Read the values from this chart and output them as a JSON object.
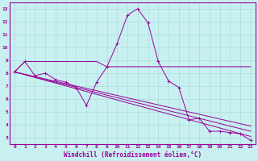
{
  "xlabel": "Windchill (Refroidissement éolien,°C)",
  "bg_color": "#c8f0f0",
  "line_color": "#990099",
  "grid_color": "#aadddd",
  "xlim": [
    -0.5,
    23.5
  ],
  "ylim": [
    2.5,
    13.5
  ],
  "xticks": [
    0,
    1,
    2,
    3,
    4,
    5,
    6,
    7,
    8,
    9,
    10,
    11,
    12,
    13,
    14,
    15,
    16,
    17,
    18,
    19,
    20,
    21,
    22,
    23
  ],
  "yticks": [
    3,
    4,
    5,
    6,
    7,
    8,
    9,
    10,
    11,
    12,
    13
  ],
  "series": [
    {
      "x": [
        0,
        1,
        2,
        3,
        4,
        5,
        6,
        7,
        8,
        9,
        10,
        11,
        12,
        13,
        14,
        15,
        16,
        17,
        18,
        19,
        20,
        21,
        22,
        23
      ],
      "y": [
        8.1,
        8.9,
        7.8,
        8.0,
        7.5,
        7.3,
        6.9,
        5.5,
        7.3,
        8.5,
        10.3,
        12.5,
        13.0,
        11.9,
        8.9,
        7.4,
        6.9,
        4.4,
        4.5,
        3.5,
        3.5,
        3.4,
        3.3,
        2.8
      ],
      "style": "marked_line"
    },
    {
      "x": [
        0,
        1,
        8,
        9,
        10,
        11,
        12,
        13,
        14,
        15,
        16,
        17,
        18,
        19,
        20,
        21,
        22,
        23
      ],
      "y": [
        8.1,
        8.9,
        8.9,
        8.5,
        8.5,
        8.5,
        8.5,
        8.5,
        8.5,
        8.5,
        8.5,
        8.5,
        8.5,
        8.5,
        8.5,
        8.5,
        8.5,
        8.5
      ],
      "style": "flat_line"
    },
    {
      "x": [
        0,
        23
      ],
      "y": [
        8.1,
        3.1
      ],
      "style": "regression"
    },
    {
      "x": [
        0,
        23
      ],
      "y": [
        8.1,
        3.5
      ],
      "style": "regression"
    },
    {
      "x": [
        0,
        23
      ],
      "y": [
        8.1,
        3.9
      ],
      "style": "regression"
    }
  ]
}
